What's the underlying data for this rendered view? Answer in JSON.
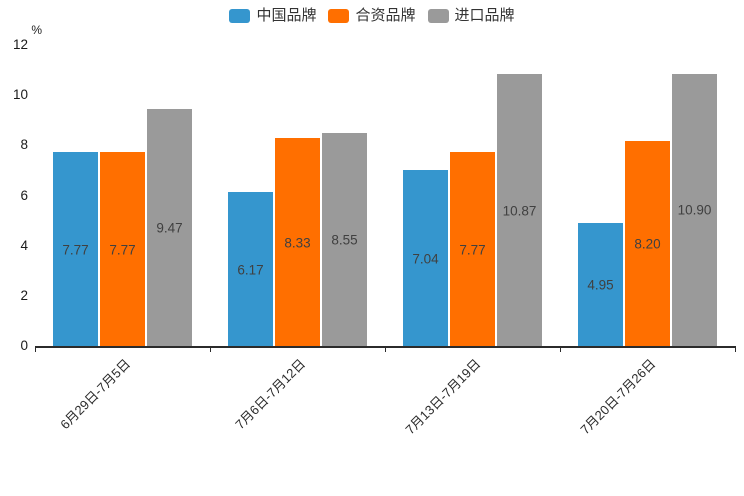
{
  "chart_data": {
    "type": "bar",
    "title": "",
    "unit": "%",
    "categories": [
      "6月29日-7月5日",
      "7月6日-7月12日",
      "7月13日-7月19日",
      "7月20日-7月26日"
    ],
    "series": [
      {
        "name": "中国品牌",
        "key": "china-brand",
        "color": "#3596CE",
        "values": [
          7.77,
          6.17,
          7.04,
          4.95
        ]
      },
      {
        "name": "合资品牌",
        "key": "joint-venture-brand",
        "color": "#FF6F00",
        "values": [
          7.77,
          8.33,
          7.77,
          8.2
        ]
      },
      {
        "name": "进口品牌",
        "key": "import-brand",
        "color": "#9A9A9A",
        "values": [
          9.47,
          8.55,
          10.87,
          10.9
        ]
      }
    ],
    "ylim": [
      0,
      12
    ],
    "y_ticks": [
      0,
      2,
      4,
      6,
      8,
      10,
      12
    ],
    "grid": false,
    "legend_position": "top",
    "value_labels": "inside-center",
    "value_label_color": "#404040",
    "axis_color": "#2b2b2b"
  }
}
